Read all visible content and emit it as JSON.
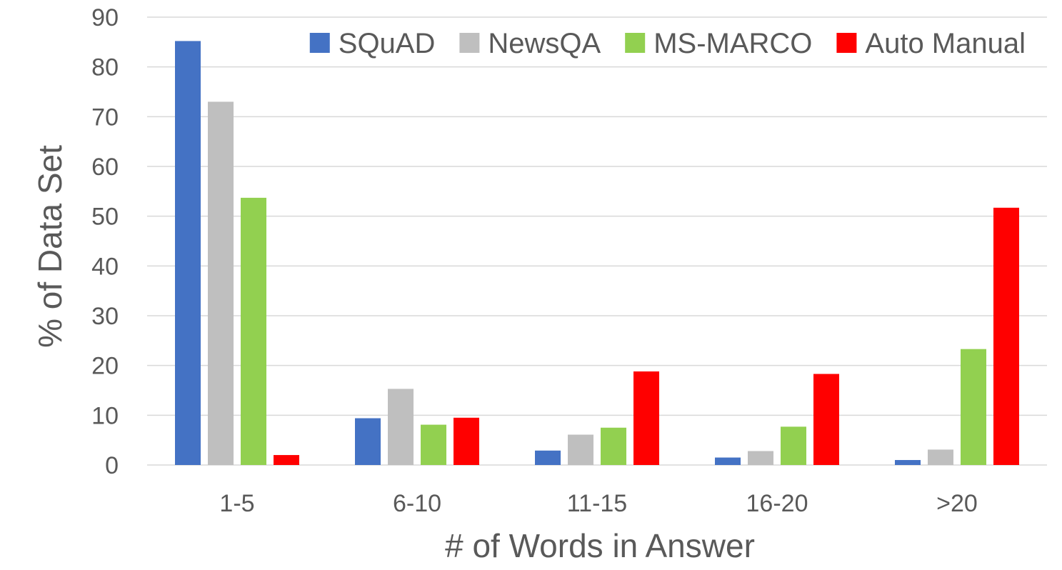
{
  "chart_data": {
    "type": "bar",
    "categories": [
      "1-5",
      "6-10",
      "11-15",
      "16-20",
      ">20"
    ],
    "series": [
      {
        "name": "SQuAD",
        "color": "#4472C4",
        "values": [
          85.2,
          9.4,
          2.9,
          1.5,
          1.0
        ]
      },
      {
        "name": "NewsQA",
        "color": "#BFBFBF",
        "values": [
          73.0,
          15.3,
          6.1,
          2.8,
          3.1
        ]
      },
      {
        "name": "MS-MARCO",
        "color": "#92D050",
        "values": [
          53.7,
          8.1,
          7.5,
          7.7,
          23.3
        ]
      },
      {
        "name": "Auto Manual",
        "color": "#FF0000",
        "values": [
          2.0,
          9.5,
          18.8,
          18.3,
          51.7
        ]
      }
    ],
    "xlabel": "# of Words in Answer",
    "ylabel": "% of Data Set",
    "ylim": [
      0,
      90
    ],
    "yticks": [
      0,
      10,
      20,
      30,
      40,
      50,
      60,
      70,
      80,
      90
    ],
    "grid": true,
    "legend_position": "top-right"
  }
}
